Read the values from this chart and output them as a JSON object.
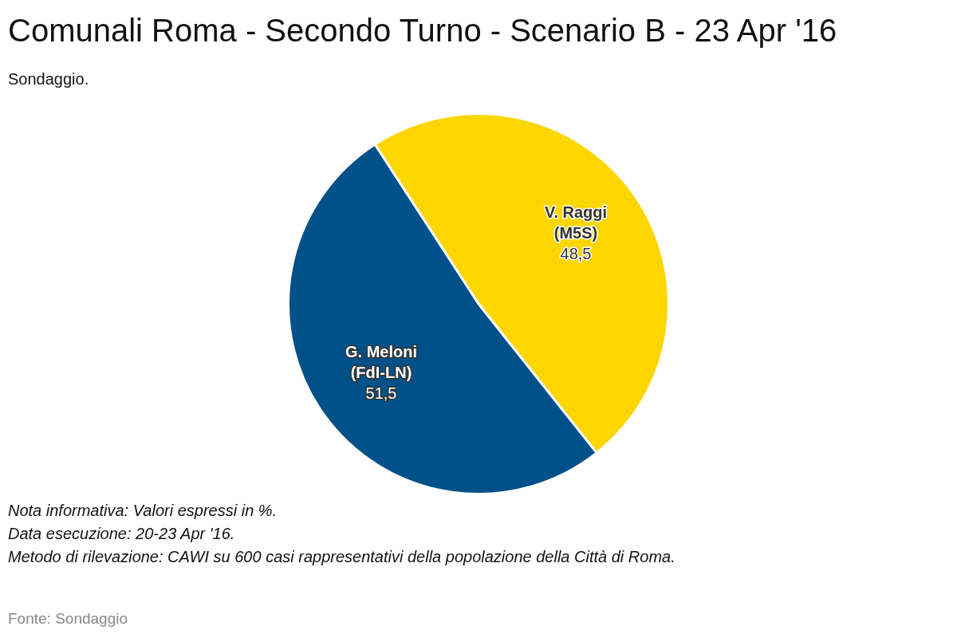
{
  "chart_data": {
    "type": "pie",
    "title": "Comunali Roma - Secondo Turno - Scenario B - 23 Apr '16",
    "subtitle": "Sondaggio.",
    "categories": [
      "V. Raggi (M5S)",
      "G. Meloni (FdI-LN)"
    ],
    "values": [
      48.5,
      51.5
    ],
    "colors": [
      "#fdd500",
      "#005189"
    ],
    "value_labels": [
      "48,5",
      "51,5"
    ],
    "annotations": [
      "Nota informativa: Valori espressi in %.",
      "Data esecuzione: 20-23 Apr '16.",
      "Metodo di rilevazione: CAWI su 600 casi rappresentativi della popolazione della Città di Roma.",
      "Fonte: Sondaggio"
    ]
  }
}
